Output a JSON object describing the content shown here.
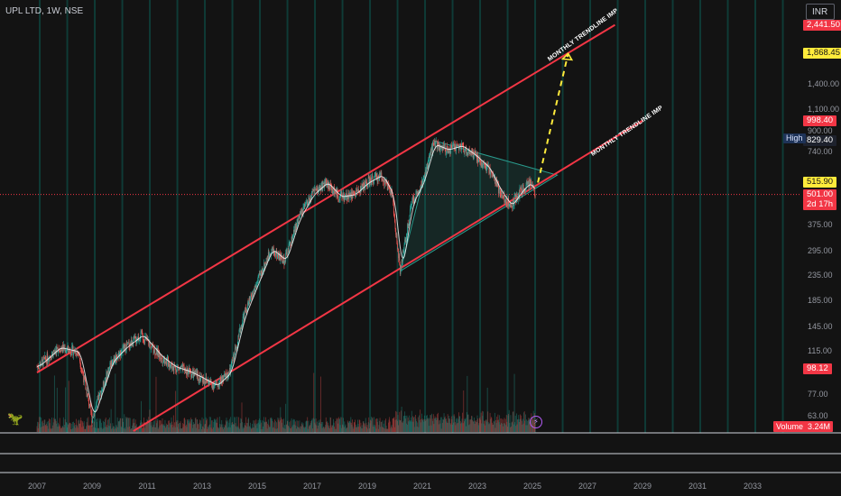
{
  "header": {
    "title": "UPL LTD, 1W, NSE",
    "currency_button": "INR"
  },
  "price_axis": {
    "ticks": [
      "1,400.00",
      "1,100.00",
      "900.00",
      "740.00",
      "375.00",
      "295.00",
      "235.00",
      "185.00",
      "145.00",
      "115.00",
      "77.00",
      "63.00"
    ],
    "tags": [
      {
        "name": "top-price-tag",
        "text": "2,441.50",
        "style": "red"
      },
      {
        "name": "target-price-tag",
        "text": "1,868.45",
        "style": "yellow"
      },
      {
        "name": "resistance-price-tag",
        "text": "998.40",
        "style": "red"
      },
      {
        "name": "high-price-tag",
        "text": "829.40",
        "style": "dark"
      },
      {
        "name": "support-price-tag",
        "text": "515.90",
        "style": "yellow"
      },
      {
        "name": "last-price-tag",
        "text": "501.00",
        "style": "red"
      },
      {
        "name": "countdown-tag",
        "text": "2d 17h",
        "style": "red"
      },
      {
        "name": "low-price-tag",
        "text": "98.12",
        "style": "red"
      }
    ],
    "high_label": "High"
  },
  "volume": {
    "label": "Volume",
    "value": "3.24M"
  },
  "annotations": {
    "upper_trendline": "MONTHLY TRENDLINE IMP",
    "lower_trendline": "MONTHLY TRENDLINE IMP"
  },
  "colors": {
    "background": "#131313",
    "up": "#26a69a",
    "down": "#ef5350",
    "trendline": "#f23645",
    "projection": "#ffeb3b",
    "triangle": "#2a9d8f",
    "vertical_lines": "#0f3b36",
    "ma_line": "#ffffff"
  },
  "chart_data": {
    "type": "candlestick",
    "symbol": "UPL LTD",
    "interval": "1W",
    "exchange": "NSE",
    "x_ticks": [
      "2007",
      "2009",
      "2011",
      "2013",
      "2015",
      "2017",
      "2019",
      "2021",
      "2023",
      "2025",
      "2027",
      "2029",
      "2031",
      "2033"
    ],
    "y_scale": "log",
    "ylim": [
      55,
      2500
    ],
    "last_price": 501.0,
    "all_time_high": 829.4,
    "price_path": [
      {
        "date": 2007.0,
        "close": 100
      },
      {
        "date": 2007.8,
        "close": 120
      },
      {
        "date": 2008.5,
        "close": 115
      },
      {
        "date": 2009.0,
        "close": 62
      },
      {
        "date": 2009.7,
        "close": 105
      },
      {
        "date": 2010.2,
        "close": 120
      },
      {
        "date": 2010.8,
        "close": 135
      },
      {
        "date": 2011.5,
        "close": 110
      },
      {
        "date": 2012.0,
        "close": 100
      },
      {
        "date": 2012.5,
        "close": 96
      },
      {
        "date": 2013.0,
        "close": 90
      },
      {
        "date": 2013.5,
        "close": 84
      },
      {
        "date": 2014.0,
        "close": 95
      },
      {
        "date": 2014.5,
        "close": 160
      },
      {
        "date": 2015.0,
        "close": 220
      },
      {
        "date": 2015.5,
        "close": 300
      },
      {
        "date": 2016.0,
        "close": 270
      },
      {
        "date": 2016.5,
        "close": 400
      },
      {
        "date": 2017.0,
        "close": 500
      },
      {
        "date": 2017.5,
        "close": 560
      },
      {
        "date": 2018.0,
        "close": 490
      },
      {
        "date": 2018.5,
        "close": 500
      },
      {
        "date": 2019.0,
        "close": 560
      },
      {
        "date": 2019.5,
        "close": 600
      },
      {
        "date": 2019.9,
        "close": 500
      },
      {
        "date": 2020.2,
        "close": 245
      },
      {
        "date": 2020.6,
        "close": 460
      },
      {
        "date": 2021.0,
        "close": 560
      },
      {
        "date": 2021.4,
        "close": 800
      },
      {
        "date": 2021.9,
        "close": 760
      },
      {
        "date": 2022.4,
        "close": 790
      },
      {
        "date": 2022.9,
        "close": 720
      },
      {
        "date": 2023.4,
        "close": 640
      },
      {
        "date": 2023.8,
        "close": 520
      },
      {
        "date": 2024.2,
        "close": 450
      },
      {
        "date": 2024.6,
        "close": 520
      },
      {
        "date": 2024.9,
        "close": 560
      },
      {
        "date": 2025.1,
        "close": 501
      }
    ],
    "upper_channel": [
      {
        "date": 2007.0,
        "price": 95
      },
      {
        "date": 2028.0,
        "price": 2441.5
      }
    ],
    "lower_channel": [
      {
        "date": 2010.5,
        "price": 55
      },
      {
        "date": 2029.0,
        "price": 998.4
      }
    ],
    "projection": [
      {
        "date": 2025.2,
        "price": 560
      },
      {
        "date": 2026.3,
        "price": 1868.45
      }
    ],
    "triangle": [
      {
        "date": 2020.2,
        "price": 245
      },
      {
        "date": 2021.4,
        "price": 829.4
      },
      {
        "date": 2025.9,
        "price": 600
      }
    ]
  }
}
